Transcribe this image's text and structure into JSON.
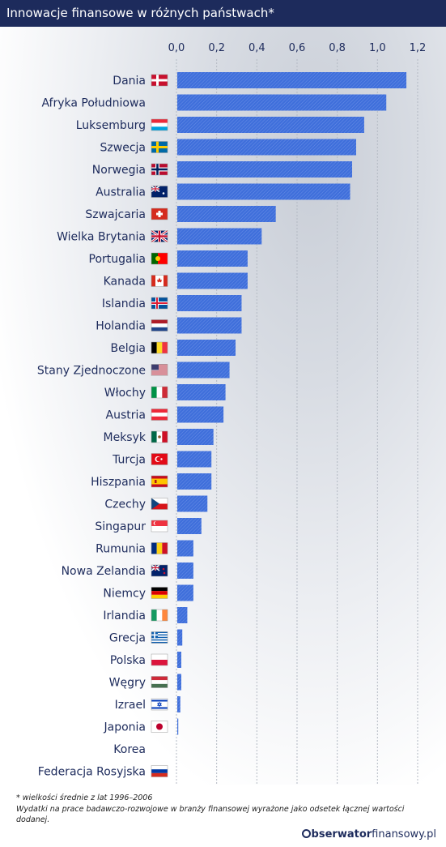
{
  "header": {
    "title": "Innowacje finansowe w różnych państwach*"
  },
  "footer": {
    "note1": "* wielkości średnie z lat 1996–2006",
    "note2": "Wydatki na prace badawczo-rozwojowe w branży finansowej wyrażone jako odsetek łącznej wartości dodanej.",
    "brand_bold": "bserwator",
    "brand_light": "finansowy.pl"
  },
  "colors": {
    "bar": "#3f6fdb",
    "title_bg": "#1d2b5c",
    "grid": "#b4bac4"
  },
  "chart_data": {
    "type": "bar",
    "orientation": "horizontal",
    "title": "Innowacje finansowe w różnych państwach*",
    "xlim": [
      0,
      1.2
    ],
    "ticks": [
      "0,0",
      "0,2",
      "0,4",
      "0,6",
      "0,8",
      "1,0",
      "1,2"
    ],
    "tick_values": [
      0,
      0.2,
      0.4,
      0.6,
      0.8,
      1.0,
      1.2
    ],
    "grid": true,
    "categories": [
      "Dania",
      "Afryka Południowa",
      "Luksemburg",
      "Szwecja",
      "Norwegia",
      "Australia",
      "Szwajcaria",
      "Wielka Brytania",
      "Portugalia",
      "Kanada",
      "Islandia",
      "Holandia",
      "Belgia",
      "Stany Zjednoczone",
      "Włochy",
      "Austria",
      "Meksyk",
      "Turcja",
      "Hiszpania",
      "Czechy",
      "Singapur",
      "Rumunia",
      "Nowa Zelandia",
      "Niemcy",
      "Irlandia",
      "Grecja",
      "Polska",
      "Węgry",
      "Izrael",
      "Japonia",
      "Korea",
      "Federacja Rosyjska"
    ],
    "values": [
      1.14,
      1.04,
      0.93,
      0.89,
      0.87,
      0.86,
      0.49,
      0.42,
      0.35,
      0.35,
      0.32,
      0.32,
      0.29,
      0.26,
      0.24,
      0.23,
      0.18,
      0.17,
      0.17,
      0.15,
      0.12,
      0.08,
      0.08,
      0.08,
      0.05,
      0.025,
      0.02,
      0.02,
      0.015,
      0.005,
      0.0,
      0.0
    ],
    "flags": [
      "dk",
      "za",
      "lu",
      "se",
      "no",
      "au",
      "ch",
      "gb",
      "pt",
      "ca",
      "is",
      "nl",
      "be",
      "us",
      "it",
      "at",
      "mx",
      "tr",
      "es",
      "cz",
      "sg",
      "ro",
      "nz",
      "de",
      "ie",
      "gr",
      "pl",
      "hu",
      "il",
      "jp",
      "kr",
      "ru"
    ]
  }
}
